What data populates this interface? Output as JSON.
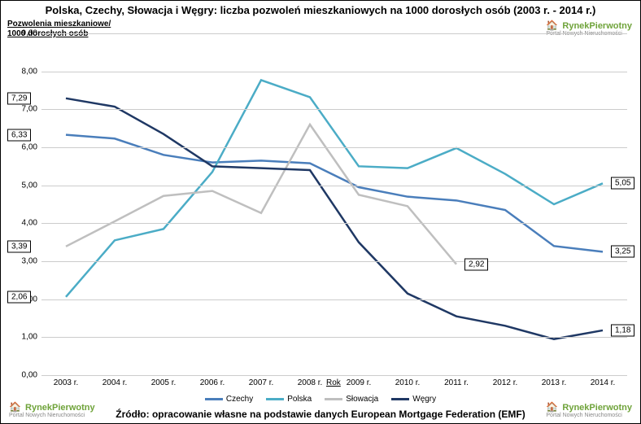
{
  "title": "Polska, Czechy, Słowacja i Węgry: liczba pozwoleń mieszkaniowych na 1000 dorosłych osób (2003 r. - 2014 r.)",
  "yaxis_title_line1": "Pozwolenia mieszkaniowe/",
  "yaxis_title_line2": "1000 dorosłych osób",
  "xaxis_title": "Rok",
  "source": "Źródło: opracowanie własne na podstawie danych European Mortgage Federation (EMF)",
  "brand_name": "RynekPierwotny",
  "brand_sub": "Portal Nowych Nieruchomości",
  "chart": {
    "type": "line",
    "ylim": [
      0,
      9
    ],
    "ytick_step": 1,
    "ytick_decimals": 2,
    "xcategories": [
      "2003 r.",
      "2004 r.",
      "2005 r.",
      "2006 r.",
      "2007 r.",
      "2008 r.",
      "2009 r.",
      "2010 r.",
      "2011 r.",
      "2012 r.",
      "2013 r.",
      "2014 r."
    ],
    "grid_color": "#cccccc",
    "background_color": "#ffffff",
    "line_width": 2.5,
    "series": [
      {
        "name": "Czechy",
        "color": "#4a7ebb",
        "values": [
          6.33,
          6.23,
          5.8,
          5.6,
          5.65,
          5.58,
          4.95,
          4.7,
          4.6,
          4.35,
          3.4,
          3.25
        ]
      },
      {
        "name": "Polska",
        "color": "#4bacc6",
        "values": [
          2.06,
          3.55,
          3.85,
          5.35,
          7.77,
          7.32,
          5.5,
          5.45,
          5.98,
          5.3,
          4.5,
          5.05
        ]
      },
      {
        "name": "Słowacja",
        "color": "#bfbfbf",
        "values": [
          3.39,
          4.05,
          4.72,
          4.85,
          4.27,
          6.6,
          4.75,
          4.45,
          2.92,
          null,
          null,
          null
        ]
      },
      {
        "name": "Węgry",
        "color": "#1f3864",
        "values": [
          7.29,
          7.07,
          6.35,
          5.5,
          5.45,
          5.4,
          3.5,
          2.15,
          1.55,
          1.3,
          0.95,
          1.18
        ]
      }
    ],
    "first_labels": [
      {
        "series": "Węgry",
        "text": "7,29"
      },
      {
        "series": "Czechy",
        "text": "6,33"
      },
      {
        "series": "Słowacja",
        "text": "3,39"
      },
      {
        "series": "Polska",
        "text": "2,06"
      }
    ],
    "last_labels": [
      {
        "series": "Polska",
        "text": "5,05"
      },
      {
        "series": "Czechy",
        "text": "3,25"
      },
      {
        "series": "Słowacja",
        "text": "2,92",
        "at_index": 8
      },
      {
        "series": "Węgry",
        "text": "1,18"
      }
    ]
  }
}
